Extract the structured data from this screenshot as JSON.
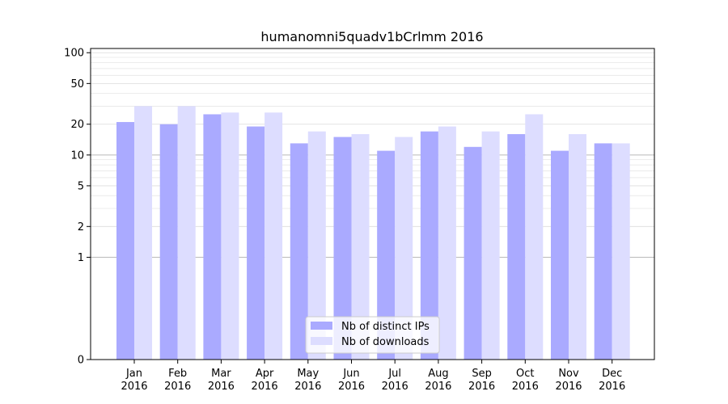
{
  "chart_data": {
    "type": "bar",
    "title": "humanomni5quadv1bCrlmm 2016",
    "xlabel": "",
    "ylabel": "",
    "yscale": "symlog",
    "ylim": [
      0,
      110
    ],
    "yticks": [
      0,
      1,
      2,
      5,
      10,
      20,
      50,
      100
    ],
    "categories": [
      "Jan\n2016",
      "Feb\n2016",
      "Mar\n2016",
      "Apr\n2016",
      "May\n2016",
      "Jun\n2016",
      "Jul\n2016",
      "Aug\n2016",
      "Sep\n2016",
      "Oct\n2016",
      "Nov\n2016",
      "Dec\n2016"
    ],
    "series": [
      {
        "name": "Nb of distinct IPs",
        "color": "#aaaaff",
        "values": [
          21,
          20,
          25,
          19,
          13,
          15,
          11,
          17,
          12,
          16,
          11,
          13
        ]
      },
      {
        "name": "Nb of downloads",
        "color": "#ddddff",
        "values": [
          30,
          30,
          26,
          26,
          17,
          16,
          15,
          19,
          17,
          25,
          16,
          13
        ]
      }
    ],
    "legend": "bottom-center",
    "grid": "horizontal"
  }
}
